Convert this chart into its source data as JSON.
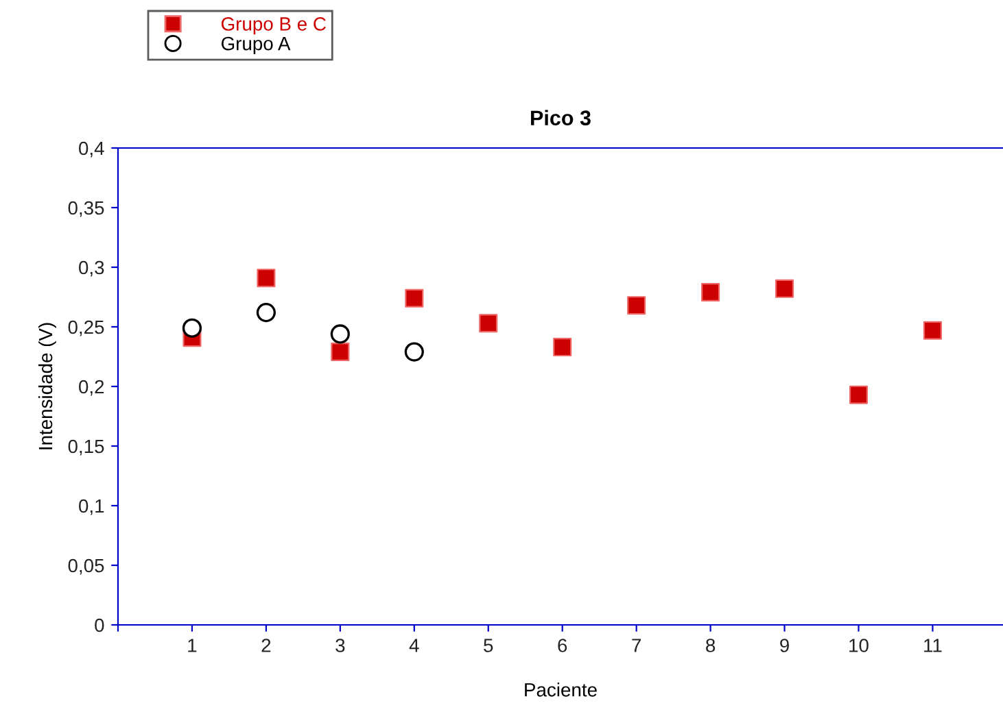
{
  "chart_data": {
    "type": "scatter",
    "title": "Pico 3",
    "xlabel": "Paciente",
    "ylabel": "Intensidade (V)",
    "xlim": [
      0,
      11.95
    ],
    "xticks": [
      {
        "value": 0,
        "label": null
      },
      1,
      2,
      3,
      4,
      5,
      6,
      7,
      8,
      9,
      10,
      11
    ],
    "ylim": [
      0,
      0.4
    ],
    "yticks": [
      0,
      {
        "value": 0.05,
        "label": "0,05"
      },
      {
        "value": 0.1,
        "label": "0,1"
      },
      {
        "value": 0.15,
        "label": "0,15"
      },
      {
        "value": 0.2,
        "label": "0,2"
      },
      {
        "value": 0.25,
        "label": "0,25"
      },
      {
        "value": 0.3,
        "label": "0,3"
      },
      {
        "value": 0.35,
        "label": "0,35"
      },
      {
        "value": 0.4,
        "label": "0,4"
      }
    ],
    "grid": false,
    "legend": "top left",
    "series": [
      {
        "name": "Grupo B e C",
        "color": "#cc0000",
        "marker": "square",
        "x": [
          1,
          2,
          3,
          4,
          5,
          6,
          7,
          8,
          9,
          10,
          11
        ],
        "values": [
          0.241,
          0.291,
          0.229,
          0.274,
          0.253,
          0.233,
          0.268,
          0.279,
          0.282,
          0.193,
          0.247
        ]
      },
      {
        "name": "Grupo A",
        "color": "#000000",
        "marker": "circle",
        "x": [
          1,
          2,
          3,
          4
        ],
        "values": [
          0.249,
          0.262,
          0.244,
          0.229
        ]
      }
    ]
  }
}
